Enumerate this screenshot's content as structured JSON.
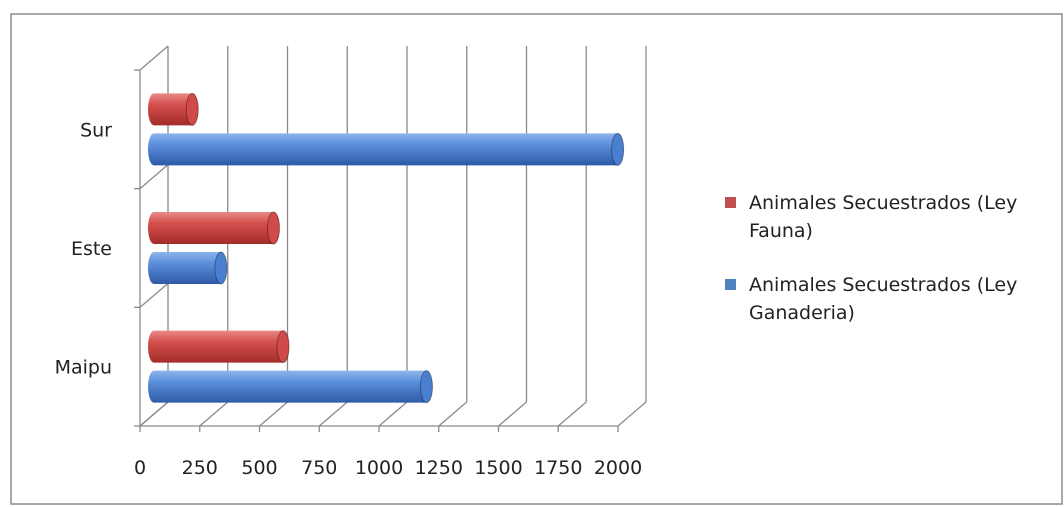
{
  "chart_data": {
    "type": "bar",
    "orientation": "horizontal",
    "style": "3d-cylinder",
    "categories": [
      "Maipu",
      "Este",
      "Sur"
    ],
    "series": [
      {
        "name": "Animales Secuestrados (Ley Ganaderia)",
        "color": "#4a7fd0",
        "values": [
          1140,
          280,
          1940
        ]
      },
      {
        "name": "Animales Secuestrados (Ley Fauna)",
        "color": "#d04a48",
        "values": [
          540,
          500,
          160
        ]
      }
    ],
    "xlim": [
      0,
      2000
    ],
    "xticks": [
      "0",
      "250",
      "500",
      "750",
      "1000",
      "1250",
      "1500",
      "1750",
      "2000"
    ],
    "grid": true,
    "legend_position": "right",
    "legend": [
      {
        "lines": [
          "Animales Secuestrados (Ley",
          "Fauna)"
        ],
        "color": "#c0504d"
      },
      {
        "lines": [
          "Animales Secuestrados (Ley",
          "Ganaderia)"
        ],
        "color": "#4f81bd"
      }
    ]
  }
}
